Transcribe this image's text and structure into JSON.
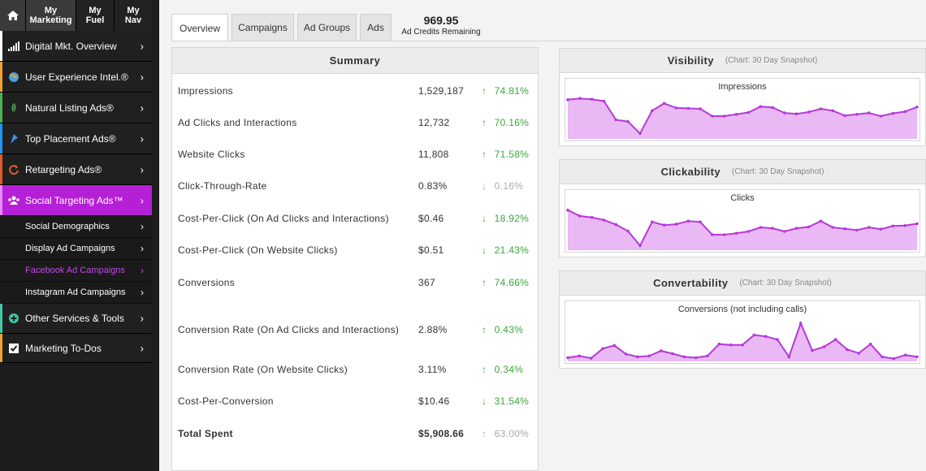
{
  "topnav": {
    "tabs": [
      {
        "label": "My\nMarketing"
      },
      {
        "label": "My\nFuel"
      },
      {
        "label": "My\nNav"
      }
    ]
  },
  "sidebar": {
    "items": [
      {
        "label": "Digital Mkt. Overview",
        "icon": "bar-chart-icon",
        "color": "#ffffff"
      },
      {
        "label": "User Experience Intel.®",
        "icon": "globe-icon",
        "color": "#f0a030"
      },
      {
        "label": "Natural Listing Ads®",
        "icon": "leaf-icon",
        "color": "#4caf50"
      },
      {
        "label": "Top Placement Ads®",
        "icon": "pin-icon",
        "color": "#2196f3"
      },
      {
        "label": "Retargeting Ads®",
        "icon": "refresh-icon",
        "color": "#e05a2b"
      },
      {
        "label": "Social Targeting Ads™",
        "icon": "people-icon",
        "color": "#b51fd6"
      }
    ],
    "subitems": [
      {
        "label": "Social Demographics"
      },
      {
        "label": "Display Ad Campaigns"
      },
      {
        "label": "Facebook Ad Campaigns"
      },
      {
        "label": "Instagram Ad Campaigns"
      }
    ],
    "bottom_items": [
      {
        "label": "Other Services & Tools",
        "icon": "plus-circle-icon",
        "color": "#3ec9a7"
      },
      {
        "label": "Marketing To-Dos",
        "icon": "checkbox-icon",
        "color": "#f0a030"
      }
    ]
  },
  "tabs": [
    "Overview",
    "Campaigns",
    "Ad Groups",
    "Ads"
  ],
  "credits": {
    "amount": "969.95",
    "label": "Ad Credits Remaining"
  },
  "summary": {
    "title": "Summary",
    "rows": [
      {
        "label": "Impressions",
        "value": "1,529,187",
        "change": "74.81%",
        "dir": "up"
      },
      {
        "label": "Ad Clicks and Interactions",
        "value": "12,732",
        "change": "70.16%",
        "dir": "up"
      },
      {
        "label": "Website Clicks",
        "value": "11,808",
        "change": "71.58%",
        "dir": "up"
      },
      {
        "label": "Click-Through-Rate",
        "value": "0.83%",
        "change": "0.16%",
        "dir": "down-muted"
      },
      {
        "label": "Cost-Per-Click (On Ad Clicks and Interactions)",
        "value": "$0.46",
        "change": "18.92%",
        "dir": "down"
      },
      {
        "label": "Cost-Per-Click (On Website Clicks)",
        "value": "$0.51",
        "change": "21.43%",
        "dir": "down"
      },
      {
        "label": "Conversions",
        "value": "367",
        "change": "74.66%",
        "dir": "up"
      },
      {
        "label": "Conversion Rate (On Ad Clicks and Interactions)",
        "value": "2.88%",
        "change": "0.43%",
        "dir": "up"
      },
      {
        "label": "Conversion Rate (On Website Clicks)",
        "value": "3.11%",
        "change": "0.34%",
        "dir": "up"
      },
      {
        "label": "Cost-Per-Conversion",
        "value": "$10.46",
        "change": "31.54%",
        "dir": "down"
      },
      {
        "label": "Total Spent",
        "value": "$5,908.66",
        "change": "63.00%",
        "dir": "up-muted"
      }
    ]
  },
  "charts": [
    {
      "title": "Visibility",
      "subtitle": "(Chart: 30 Day Snapshot)",
      "plot_title": "Impressions"
    },
    {
      "title": "Clickability",
      "subtitle": "(Chart: 30 Day Snapshot)",
      "plot_title": "Clicks"
    },
    {
      "title": "Convertability",
      "subtitle": "(Chart: 30 Day Snapshot)",
      "plot_title": "Conversions (not including calls)"
    }
  ],
  "chart_data": [
    {
      "type": "area",
      "title": "Impressions",
      "ylim": [
        0,
        100
      ],
      "color": "#b53ad9",
      "fill": "#e9b8f5",
      "values": [
        86,
        89,
        87,
        83,
        42,
        38,
        12,
        62,
        78,
        68,
        67,
        66,
        50,
        50,
        54,
        58,
        71,
        69,
        57,
        55,
        59,
        66,
        62,
        51,
        54,
        57,
        50,
        56,
        60,
        70
      ]
    },
    {
      "type": "area",
      "title": "Clicks",
      "ylim": [
        0,
        100
      ],
      "color": "#b53ad9",
      "fill": "#e9b8f5",
      "values": [
        88,
        75,
        72,
        66,
        56,
        42,
        10,
        62,
        55,
        57,
        64,
        62,
        34,
        34,
        37,
        41,
        50,
        48,
        41,
        48,
        51,
        64,
        50,
        47,
        44,
        50,
        46,
        53,
        54,
        58
      ]
    },
    {
      "type": "area",
      "title": "Conversions (not including calls)",
      "ylim": [
        0,
        100
      ],
      "color": "#b53ad9",
      "fill": "#e9b8f5",
      "values": [
        8,
        12,
        7,
        28,
        35,
        16,
        10,
        12,
        23,
        17,
        10,
        8,
        12,
        38,
        36,
        36,
        58,
        55,
        48,
        10,
        84,
        24,
        32,
        48,
        26,
        18,
        38,
        10,
        6,
        14,
        10
      ]
    }
  ]
}
